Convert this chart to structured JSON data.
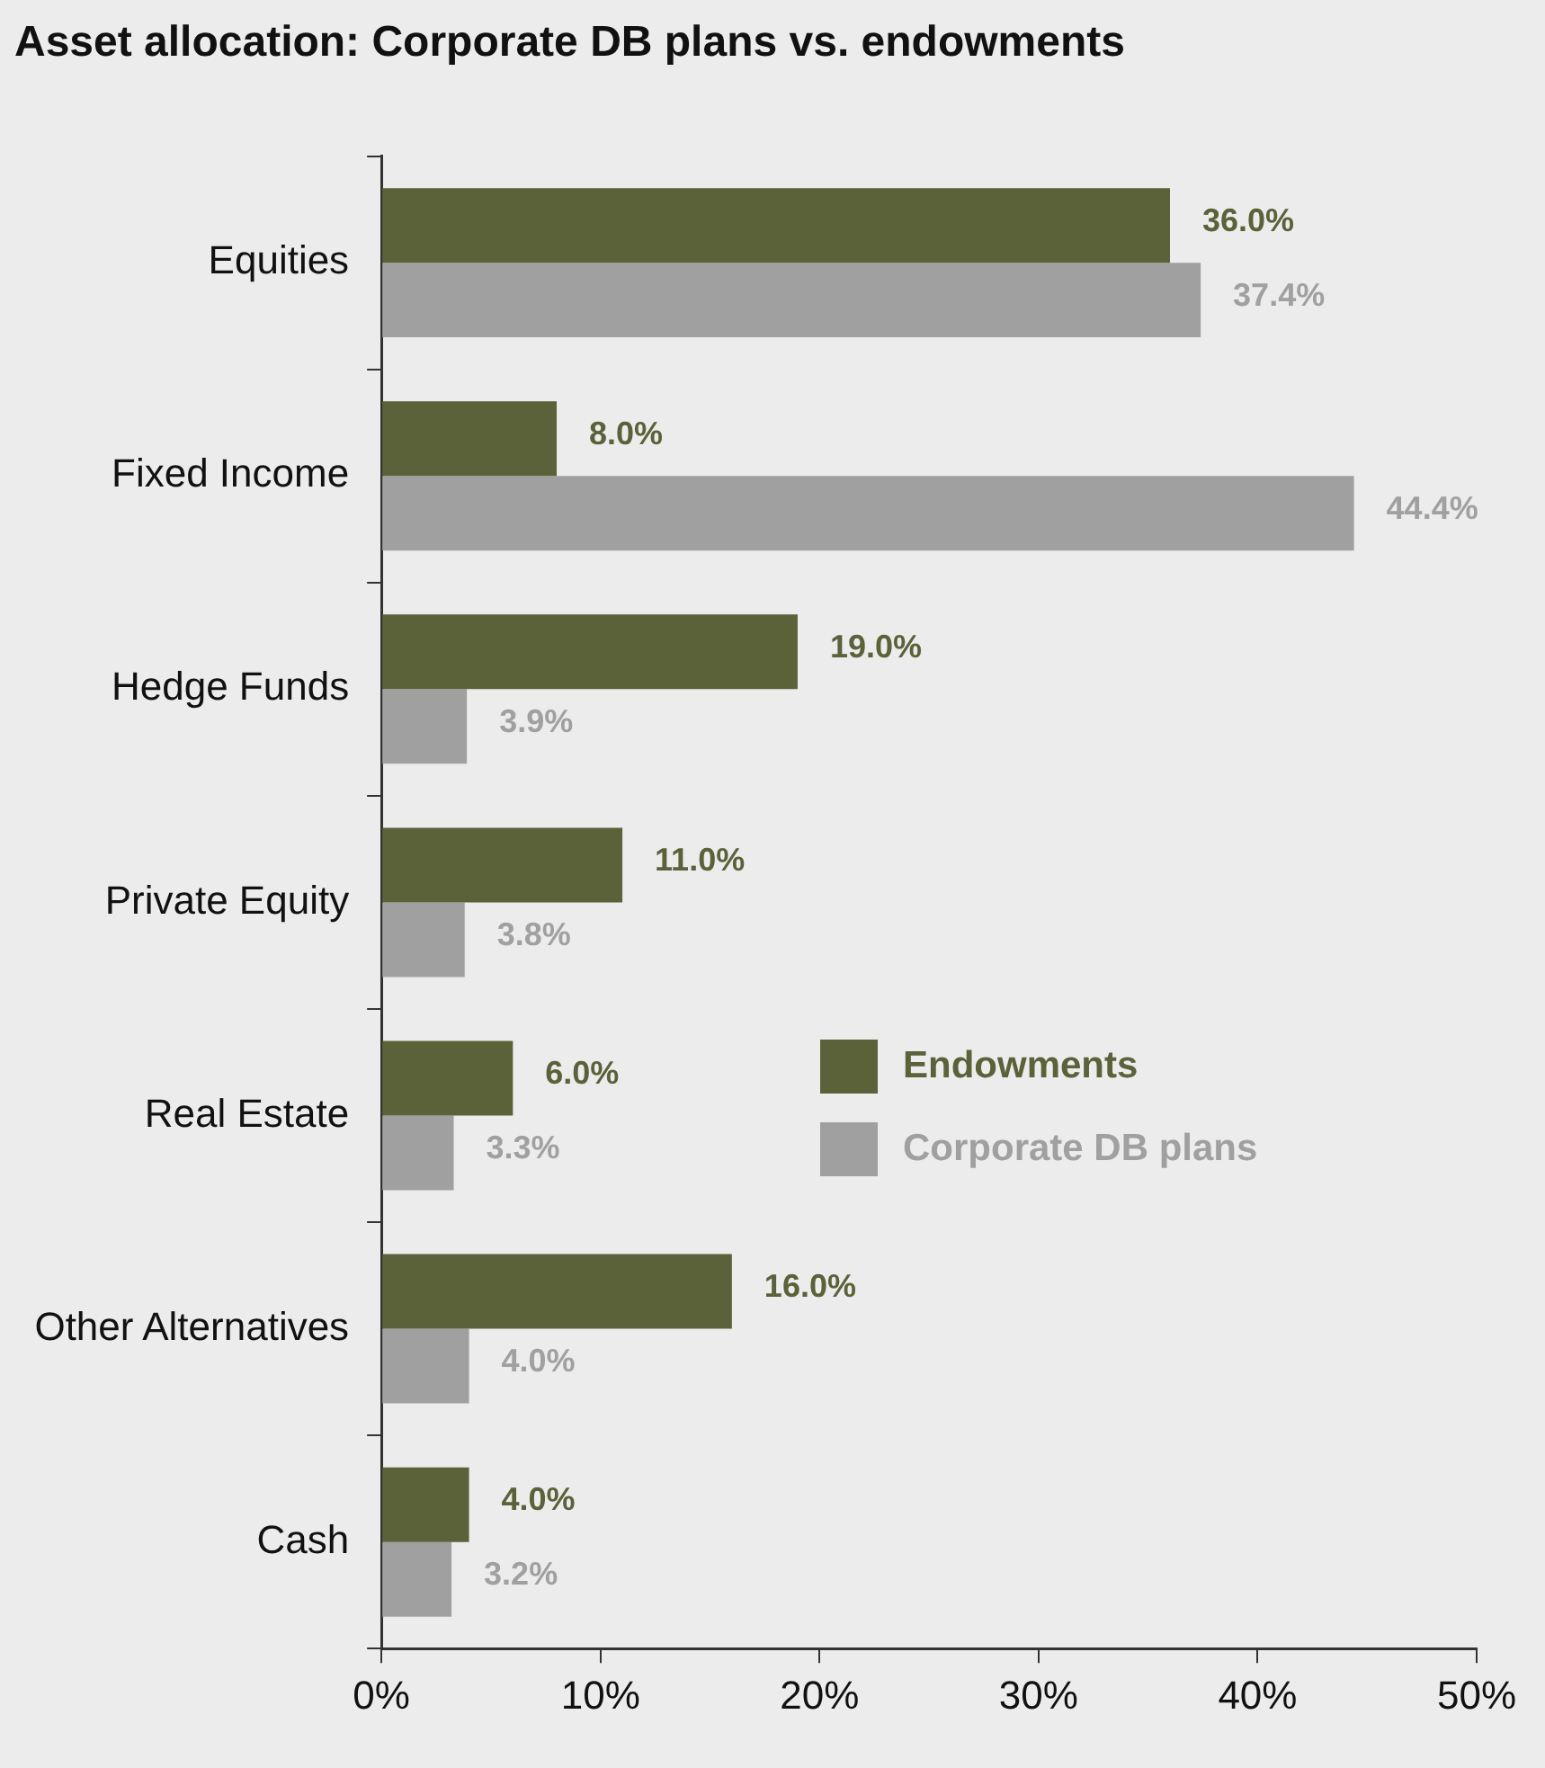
{
  "chart_data": {
    "type": "bar",
    "orientation": "horizontal",
    "title": "Asset allocation: Corporate DB plans vs. endowments",
    "categories": [
      "Equities",
      "Fixed Income",
      "Hedge Funds",
      "Private Equity",
      "Real Estate",
      "Other Alternatives",
      "Cash"
    ],
    "series": [
      {
        "name": "Endowments",
        "color": "#5b6139",
        "values": [
          36.0,
          8.0,
          19.0,
          11.0,
          6.0,
          16.0,
          4.0
        ],
        "value_labels": [
          "36.0%",
          "8.0%",
          "19.0%",
          "11.0%",
          "6.0%",
          "16.0%",
          "4.0%"
        ]
      },
      {
        "name": "Corporate DB plans",
        "color": "#a0a0a0",
        "values": [
          37.4,
          44.4,
          3.9,
          3.8,
          3.3,
          4.0,
          3.2
        ],
        "value_labels": [
          "37.4%",
          "44.4%",
          "3.9%",
          "3.8%",
          "3.3%",
          "4.0%",
          "3.2%"
        ]
      }
    ],
    "xlim": [
      0,
      50
    ],
    "xticks": [
      {
        "value": 0,
        "label": "0%"
      },
      {
        "value": 10,
        "label": "10%"
      },
      {
        "value": 20,
        "label": "20%"
      },
      {
        "value": 30,
        "label": "30%"
      },
      {
        "value": 40,
        "label": "40%"
      },
      {
        "value": 50,
        "label": "50%"
      }
    ],
    "grid": false,
    "legend": "right"
  }
}
